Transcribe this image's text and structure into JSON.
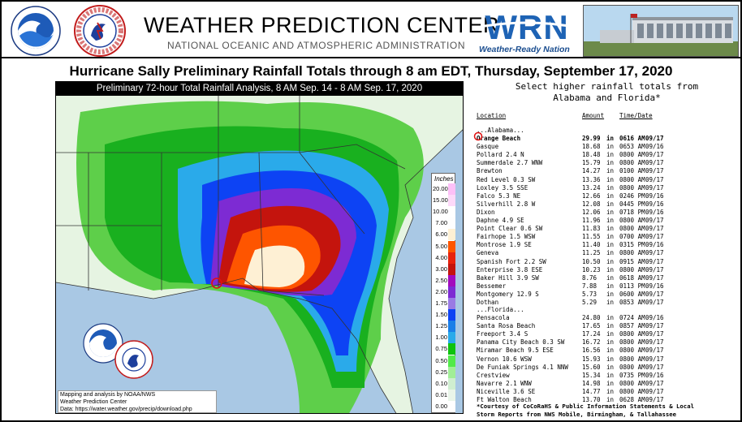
{
  "header": {
    "title": "WEATHER PREDICTION CENTER",
    "subtitle": "NATIONAL OCEANIC AND ATMOSPHERIC ADMINISTRATION",
    "wrn_logo_text": "WRN",
    "wrn_tagline": "Weather-Ready Nation"
  },
  "main_title": "Hurricane Sally Preliminary Rainfall Totals through 8 am EDT, Thursday, September 17, 2020",
  "map": {
    "header": "Preliminary 72-hour Total Rainfall Analysis, 8 AM Sep. 14 - 8 AM Sep. 17, 2020",
    "legend_title": "Inches",
    "legend": [
      {
        "label": "20.00",
        "color": "#fdc0f7"
      },
      {
        "label": "15.00",
        "color": "#fdd9f9"
      },
      {
        "label": "10.00",
        "color": "#ffffff"
      },
      {
        "label": "7.00",
        "color": "#fefefe"
      },
      {
        "label": "6.00",
        "color": "#fef0d4"
      },
      {
        "label": "5.00",
        "color": "#fe5500"
      },
      {
        "label": "4.00",
        "color": "#e8230d"
      },
      {
        "label": "3.00",
        "color": "#c4140d"
      },
      {
        "label": "2.50",
        "color": "#a20bbd"
      },
      {
        "label": "2.00",
        "color": "#7d2bd3"
      },
      {
        "label": "1.75",
        "color": "#9a7ae4"
      },
      {
        "label": "1.50",
        "color": "#0d43f4"
      },
      {
        "label": "1.25",
        "color": "#1b7fe8"
      },
      {
        "label": "1.00",
        "color": "#2aaaea"
      },
      {
        "label": "0.75",
        "color": "#0ec30e"
      },
      {
        "label": "0.50",
        "color": "#52ea4a"
      },
      {
        "label": "0.25",
        "color": "#a1ee97"
      },
      {
        "label": "0.10",
        "color": "#cfeed0"
      },
      {
        "label": "0.01",
        "color": "#e9f5e9"
      },
      {
        "label": "0.00",
        "color": "#ffffff"
      }
    ],
    "credit_lines": [
      "Mapping and analysis by NOAA/NWS",
      "Weather Prediction Center",
      "Data: https://water.weather.gov/precip/download.php"
    ]
  },
  "rainfall": {
    "heading_line1": "Select higher rainfall totals from",
    "heading_line2": "Alabama and Florida*",
    "columns": {
      "location": "Location",
      "amount": "Amount",
      "time_date": "Time/Date"
    },
    "alabama_label": "...Alabama...",
    "alabama": [
      {
        "loc": "Orange Beach",
        "amt": "29.99",
        "unit": "in",
        "time": "0616 AM",
        "date": "09/17"
      },
      {
        "loc": "Gasque",
        "amt": "18.68",
        "unit": "in",
        "time": "0653 AM",
        "date": "09/16"
      },
      {
        "loc": "Pollard 2.4 N",
        "amt": "18.48",
        "unit": "in",
        "time": "0800 AM",
        "date": "09/17"
      },
      {
        "loc": "Summerdale 2.7 WNW",
        "amt": "15.79",
        "unit": "in",
        "time": "0800 AM",
        "date": "09/17"
      },
      {
        "loc": "Brewton",
        "amt": "14.27",
        "unit": "in",
        "time": "0100 AM",
        "date": "09/17"
      },
      {
        "loc": "Red Level 0.3 SW",
        "amt": "13.36",
        "unit": "in",
        "time": "0800 AM",
        "date": "09/17"
      },
      {
        "loc": "Loxley 3.5 SSE",
        "amt": "13.24",
        "unit": "in",
        "time": "0800 AM",
        "date": "09/17"
      },
      {
        "loc": "Falco 5.3 NE",
        "amt": "12.66",
        "unit": "in",
        "time": "0246 PM",
        "date": "09/16"
      },
      {
        "loc": "Silverhill 2.8 W",
        "amt": "12.08",
        "unit": "in",
        "time": "0445 PM",
        "date": "09/16"
      },
      {
        "loc": "Dixon",
        "amt": "12.06",
        "unit": "in",
        "time": "0718 PM",
        "date": "09/16"
      },
      {
        "loc": "Daphne 4.9 SE",
        "amt": "11.96",
        "unit": "in",
        "time": "0800 AM",
        "date": "09/17"
      },
      {
        "loc": "Point Clear 0.6 SW",
        "amt": "11.83",
        "unit": "in",
        "time": "0800 AM",
        "date": "09/17"
      },
      {
        "loc": "Fairhope 1.5 WSW",
        "amt": "11.55",
        "unit": "in",
        "time": "0700 AM",
        "date": "09/17"
      },
      {
        "loc": "Montrose 1.9 SE",
        "amt": "11.40",
        "unit": "in",
        "time": "0315 PM",
        "date": "09/16"
      },
      {
        "loc": "Geneva",
        "amt": "11.25",
        "unit": "in",
        "time": "0800 AM",
        "date": "09/17"
      },
      {
        "loc": "Spanish Fort 2.2 SW",
        "amt": "10.50",
        "unit": "in",
        "time": "0915 AM",
        "date": "09/17"
      },
      {
        "loc": "Enterprise 3.8 ESE",
        "amt": "10.23",
        "unit": "in",
        "time": "0800 AM",
        "date": "09/17"
      },
      {
        "loc": "Baker Hill 3.9 SW",
        "amt": "8.76",
        "unit": "in",
        "time": "0618 AM",
        "date": "09/17"
      },
      {
        "loc": "Bessemer",
        "amt": "7.88",
        "unit": "in",
        "time": "0113 PM",
        "date": "09/16"
      },
      {
        "loc": "Montgomery 12.9 S",
        "amt": "5.73",
        "unit": "in",
        "time": "0600 AM",
        "date": "09/17"
      },
      {
        "loc": "Dothan",
        "amt": "5.29",
        "unit": "in",
        "time": "0853 AM",
        "date": "09/17"
      }
    ],
    "florida_label": "...Florida...",
    "florida": [
      {
        "loc": "Pensacola",
        "amt": "24.80",
        "unit": "in",
        "time": "0724 AM",
        "date": "09/16"
      },
      {
        "loc": "Santa Rosa Beach",
        "amt": "17.65",
        "unit": "in",
        "time": "0857 AM",
        "date": "09/17"
      },
      {
        "loc": "Freeport 3.4 S",
        "amt": "17.24",
        "unit": "in",
        "time": "0800 AM",
        "date": "09/17"
      },
      {
        "loc": "Panama City Beach 0.3 SW",
        "amt": "16.72",
        "unit": "in",
        "time": "0800 AM",
        "date": "09/17"
      },
      {
        "loc": "Miramar Beach 9.5 ESE",
        "amt": "16.56",
        "unit": "in",
        "time": "0800 AM",
        "date": "09/17"
      },
      {
        "loc": "Vernon 10.6 WSW",
        "amt": "15.93",
        "unit": "in",
        "time": "0800 AM",
        "date": "09/17"
      },
      {
        "loc": "De Funiak Springs 4.1 NNW",
        "amt": "15.60",
        "unit": "in",
        "time": "0800 AM",
        "date": "09/17"
      },
      {
        "loc": "Crestview",
        "amt": "15.34",
        "unit": "in",
        "time": "0735 PM",
        "date": "09/16"
      },
      {
        "loc": "Navarre 2.1 WNW",
        "amt": "14.98",
        "unit": "in",
        "time": "0800 AM",
        "date": "09/17"
      },
      {
        "loc": "Niceville 3.6 SE",
        "amt": "14.77",
        "unit": "in",
        "time": "0800 AM",
        "date": "09/17"
      },
      {
        "loc": "Ft Walton Beach",
        "amt": "13.70",
        "unit": "in",
        "time": "0628 AM",
        "date": "09/17"
      }
    ],
    "footnote_line1": "*Courtesy of CoCoRaHS & Public Information Statements & Local",
    "footnote_line2": "Storm Reports from NWS Mobile, Birmingham, & Tallahassee"
  }
}
